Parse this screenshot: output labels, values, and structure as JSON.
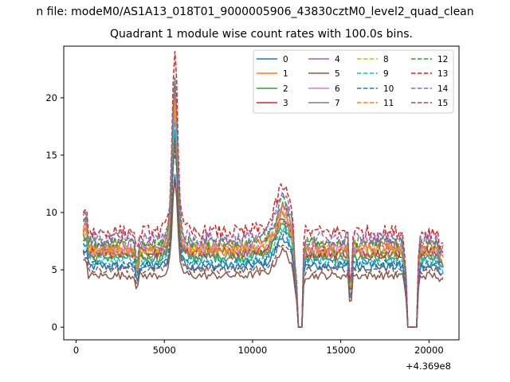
{
  "suptitle": "n file: modeM0/AS1A13_018T01_9000005906_43830cztM0_level2_quad_clean",
  "chart_data": {
    "type": "line",
    "title": "Quadrant 1 module wise count rates with 100.0s bins.",
    "xlabel": "",
    "ylabel": "",
    "x_offset_text": "+4.369e8",
    "xlim": [
      -700,
      21700
    ],
    "ylim": [
      -1.1,
      24.5
    ],
    "xticks": [
      0,
      5000,
      10000,
      15000,
      20000
    ],
    "yticks": [
      0,
      5,
      10,
      15,
      20
    ],
    "grid": false,
    "legend": {
      "placement": "top-right",
      "columns": 4
    },
    "x_range": [
      400,
      20800
    ],
    "bin_seconds": 100,
    "series": [
      {
        "name": "0",
        "color": "#1f77b4",
        "linestyle": "solid",
        "baseline": 5.3
      },
      {
        "name": "1",
        "color": "#ff7f0e",
        "linestyle": "solid",
        "baseline": 6.6
      },
      {
        "name": "2",
        "color": "#2ca02c",
        "linestyle": "solid",
        "baseline": 6.1
      },
      {
        "name": "3",
        "color": "#d62728",
        "linestyle": "solid",
        "baseline": 6.5
      },
      {
        "name": "4",
        "color": "#9467bd",
        "linestyle": "solid",
        "baseline": 7.2
      },
      {
        "name": "5",
        "color": "#8c564b",
        "linestyle": "solid",
        "baseline": 4.5
      },
      {
        "name": "6",
        "color": "#e377c2",
        "linestyle": "solid",
        "baseline": 6.8
      },
      {
        "name": "7",
        "color": "#7f7f7f",
        "linestyle": "solid",
        "baseline": 6.3
      },
      {
        "name": "8",
        "color": "#bcbd22",
        "linestyle": "dashed",
        "baseline": 6.7
      },
      {
        "name": "9",
        "color": "#17becf",
        "linestyle": "dashed",
        "baseline": 5.8
      },
      {
        "name": "10",
        "color": "#1f77b4",
        "linestyle": "dashed",
        "baseline": 5.5
      },
      {
        "name": "11",
        "color": "#ff7f0e",
        "linestyle": "dashed",
        "baseline": 7.0
      },
      {
        "name": "12",
        "color": "#2ca02c",
        "linestyle": "dashed",
        "baseline": 7.4
      },
      {
        "name": "13",
        "color": "#d62728",
        "linestyle": "dashed",
        "baseline": 8.3
      },
      {
        "name": "14",
        "color": "#9467bd",
        "linestyle": "dashed",
        "baseline": 7.8
      },
      {
        "name": "15",
        "color": "#8c564b",
        "linestyle": "dashed",
        "baseline": 5.0
      }
    ],
    "features": {
      "peak": {
        "center": 5600,
        "width": 150,
        "peak_values": [
          12.5,
          17.8,
          16.5,
          20.0,
          19.5,
          12.0,
          18.0,
          15.5,
          18.8,
          17.0,
          15.0,
          19.8,
          20.5,
          23.5,
          21.0,
          15.5
        ]
      },
      "bump": {
        "center": 11700,
        "width": 350,
        "scale": 0.55
      },
      "gaps": [
        {
          "start": 12550,
          "end": 12800,
          "value": 0
        },
        {
          "start": 18800,
          "end": 19350,
          "value": 0
        }
      ],
      "dips": [
        {
          "center": 15550,
          "depth": 0.45
        },
        {
          "center": 3450,
          "depth": 0.2
        }
      ]
    }
  }
}
